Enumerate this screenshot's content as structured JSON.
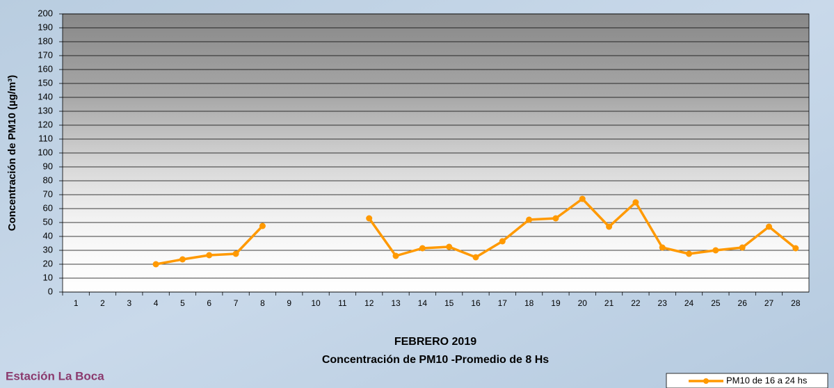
{
  "chart_data": {
    "type": "line",
    "title": "FEBRERO 2019",
    "subtitle": "Concentración de PM10 -Promedio de 8 Hs",
    "y_label": "Concentración de PM10 (µg/m³)",
    "station": "Estación La Boca",
    "categories": [
      1,
      2,
      3,
      4,
      5,
      6,
      7,
      8,
      9,
      10,
      11,
      12,
      13,
      14,
      15,
      16,
      17,
      18,
      19,
      20,
      21,
      22,
      23,
      24,
      25,
      26,
      27,
      28
    ],
    "series": [
      {
        "name": "PM10 de 16 a 24 hs",
        "color": "#ff9900",
        "values": [
          null,
          null,
          null,
          20,
          23.5,
          26.5,
          27.5,
          47.5,
          null,
          null,
          null,
          53,
          26,
          31.5,
          32.5,
          25,
          36.5,
          52,
          53,
          67,
          47,
          64.5,
          32,
          27.5,
          30,
          32,
          47,
          31.5
        ]
      }
    ],
    "ylim": [
      0,
      200
    ],
    "yticks": [
      0,
      10,
      20,
      30,
      40,
      50,
      60,
      70,
      80,
      90,
      100,
      110,
      120,
      130,
      140,
      150,
      160,
      170,
      180,
      190,
      200
    ],
    "grid": true,
    "legend": "bottom-right"
  }
}
